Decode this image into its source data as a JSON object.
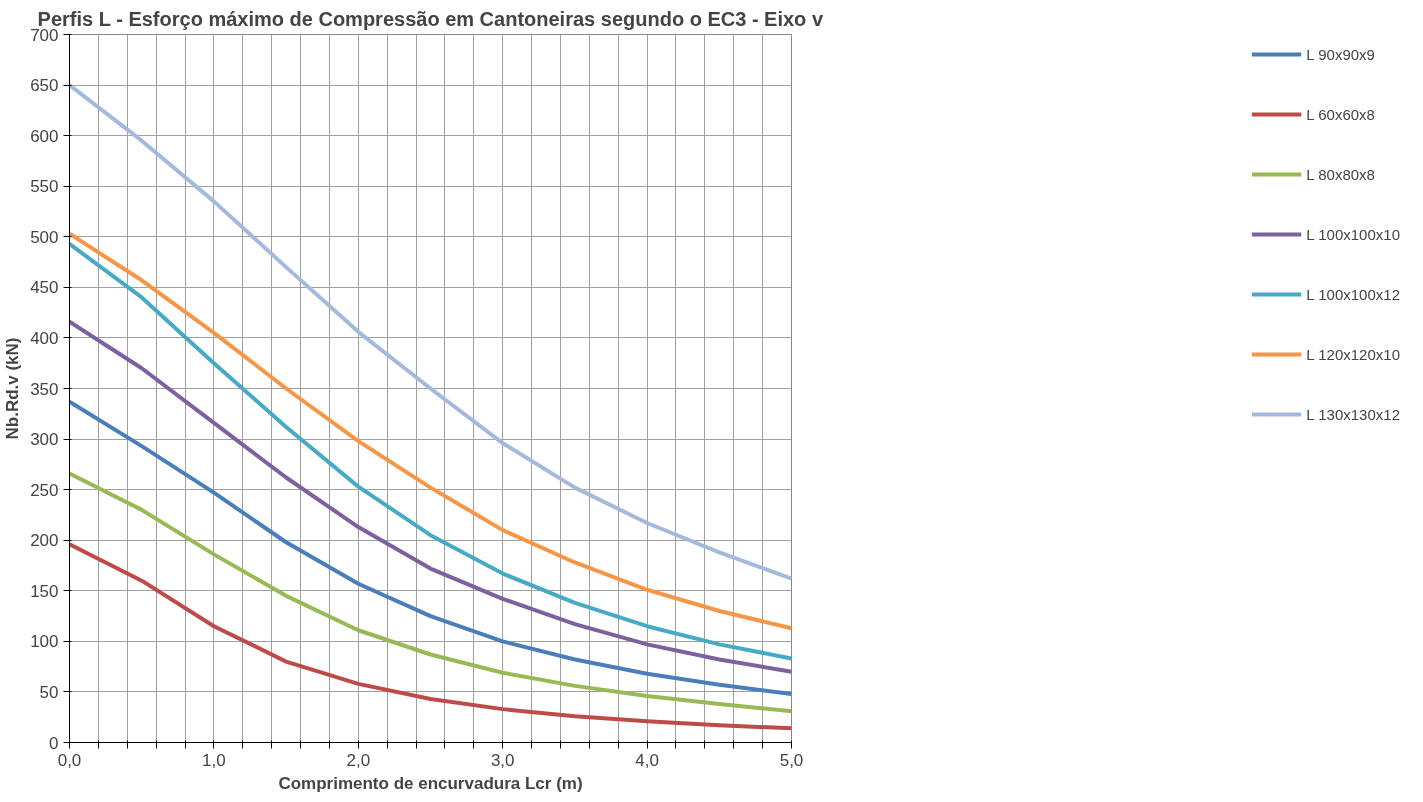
{
  "chart_data": {
    "type": "line",
    "title": "Perfis L - Esforço máximo de Compressão em Cantoneiras segundo o EC3 - Eixo v",
    "xlabel": "Comprimento de encurvadura Lcr (m)",
    "ylabel": "Nb.Rd.v (kN)",
    "x": [
      0,
      0.5,
      1,
      1.5,
      2,
      2.5,
      3,
      3.5,
      4,
      4.5,
      5
    ],
    "series": [
      {
        "name": "L 90x90x9",
        "color": "#4a7ebb",
        "values": [
          337,
          293,
          247,
          198,
          157,
          125,
          100,
          82,
          68,
          57,
          48
        ]
      },
      {
        "name": "L 60x60x8",
        "color": "#be4b48",
        "values": [
          196,
          160,
          115,
          80,
          58,
          43,
          33,
          26,
          21,
          17,
          14
        ]
      },
      {
        "name": "L 80x80x8",
        "color": "#98b954",
        "values": [
          266,
          230,
          186,
          145,
          111,
          87,
          69,
          56,
          46,
          38,
          31
        ]
      },
      {
        "name": "L 100x100x10",
        "color": "#7d60a0",
        "values": [
          416,
          370,
          316,
          262,
          213,
          172,
          142,
          117,
          97,
          82,
          70
        ]
      },
      {
        "name": "L 100x100x12",
        "color": "#46aac5",
        "values": [
          493,
          440,
          375,
          312,
          253,
          205,
          167,
          138,
          115,
          97,
          83
        ]
      },
      {
        "name": "L 120x120x10",
        "color": "#f79646",
        "values": [
          503,
          457,
          405,
          350,
          298,
          252,
          210,
          178,
          151,
          130,
          113
        ]
      },
      {
        "name": "L 130x130x12",
        "color": "#a5b9dc",
        "values": [
          650,
          595,
          535,
          470,
          406,
          350,
          296,
          252,
          217,
          188,
          162
        ]
      }
    ],
    "xlim": [
      0,
      5
    ],
    "ylim": [
      0,
      700
    ],
    "xticks": [
      {
        "value": 0,
        "label": "0,0"
      },
      {
        "value": 0.2,
        "label": null
      },
      {
        "value": 0.4,
        "label": null
      },
      {
        "value": 0.6,
        "label": null
      },
      {
        "value": 0.8,
        "label": null
      },
      {
        "value": 1,
        "label": "1,0"
      },
      {
        "value": 1.2,
        "label": null
      },
      {
        "value": 1.4,
        "label": null
      },
      {
        "value": 1.6,
        "label": null
      },
      {
        "value": 1.8,
        "label": null
      },
      {
        "value": 2,
        "label": "2,0"
      },
      {
        "value": 2.2,
        "label": null
      },
      {
        "value": 2.4,
        "label": null
      },
      {
        "value": 2.6,
        "label": null
      },
      {
        "value": 2.8,
        "label": null
      },
      {
        "value": 3,
        "label": "3,0"
      },
      {
        "value": 3.2,
        "label": null
      },
      {
        "value": 3.4,
        "label": null
      },
      {
        "value": 3.6,
        "label": null
      },
      {
        "value": 3.8,
        "label": null
      },
      {
        "value": 4,
        "label": "4,0"
      },
      {
        "value": 4.2,
        "label": null
      },
      {
        "value": 4.4,
        "label": null
      },
      {
        "value": 4.6,
        "label": null
      },
      {
        "value": 4.8,
        "label": null
      },
      {
        "value": 5,
        "label": "5,0"
      }
    ],
    "yticks": [
      0,
      50,
      100,
      150,
      200,
      250,
      300,
      350,
      400,
      450,
      500,
      550,
      600,
      650,
      700
    ],
    "grid": true,
    "legend": "right",
    "marker": "none",
    "line_style": "solid"
  }
}
